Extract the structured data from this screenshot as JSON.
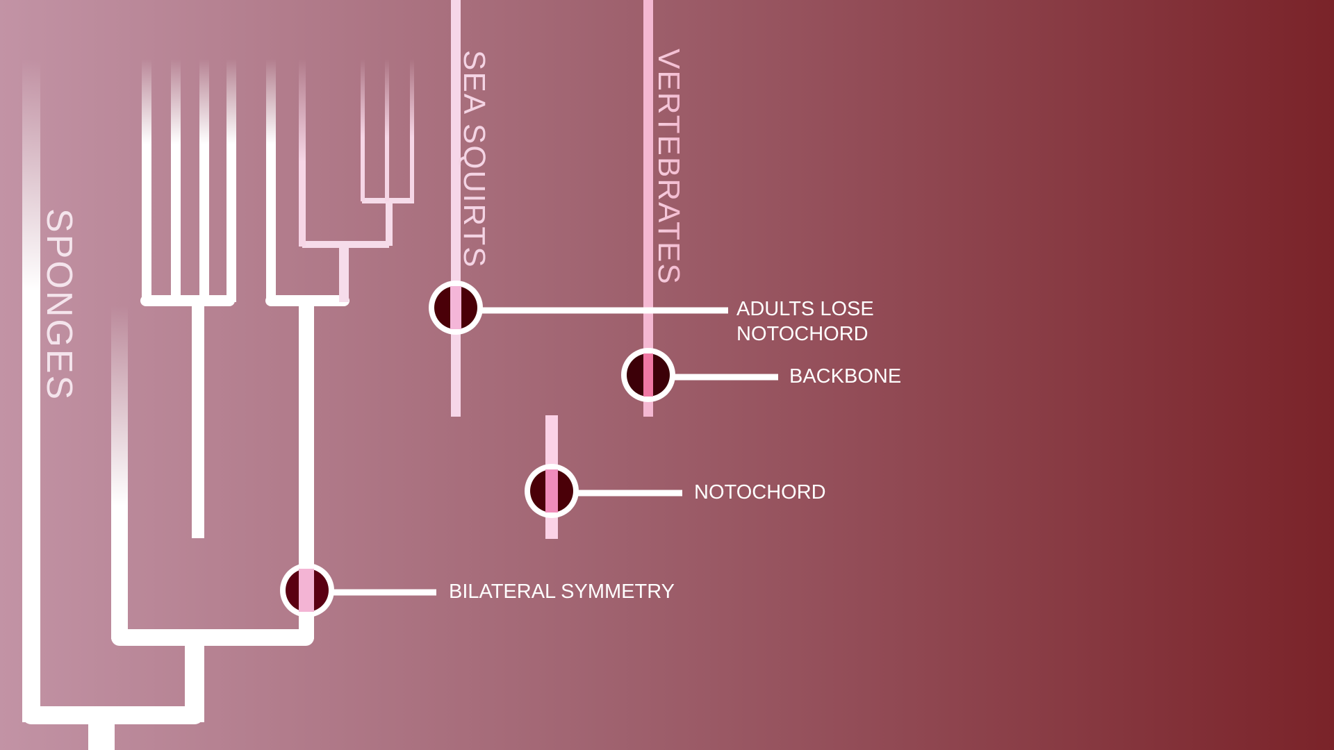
{
  "colors": {
    "background_left": "#c293a5",
    "background_right": "#7a2329",
    "branch": "#ffffff",
    "sea_squirt_branch": "#f8cfe4",
    "vertebrate_branch": "#f7b7cf",
    "node_fill": "#4a0008",
    "node_stripe": "#f2a2c8",
    "label_text": "#ffffff"
  },
  "clades": {
    "sponges": "SPONGES",
    "sea_squirts": "SEA SQUIRTS",
    "vertebrates": "VERTEBRATES"
  },
  "traits": {
    "adults_lose_notochord": [
      "ADULTS LOSE",
      "NOTOCHORD"
    ],
    "backbone": "BACKBONE",
    "notochord": "NOTOCHORD",
    "bilateral_symmetry": "BILATERAL SYMMETRY"
  }
}
